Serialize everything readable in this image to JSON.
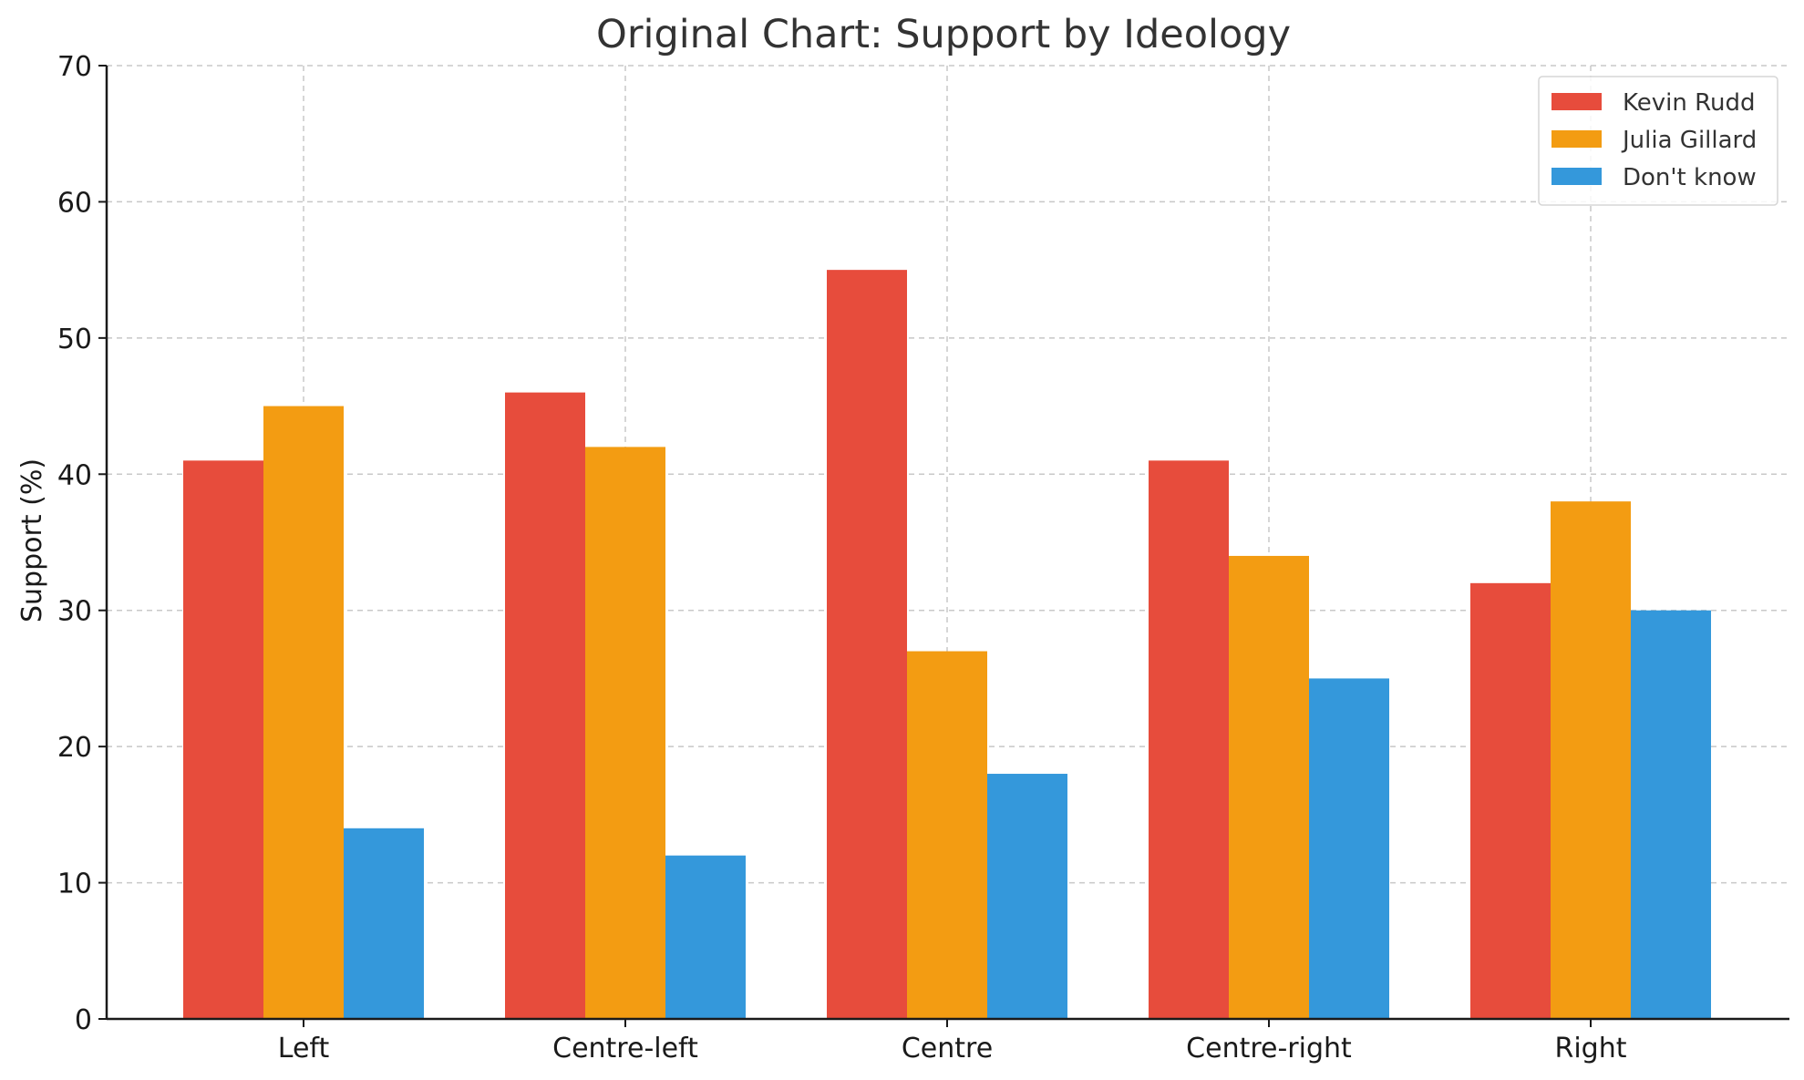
{
  "chart_data": {
    "type": "bar",
    "title": "Original Chart: Support by Ideology",
    "xlabel": "",
    "ylabel": "Support (%)",
    "categories": [
      "Left",
      "Centre-left",
      "Centre",
      "Centre-right",
      "Right"
    ],
    "series": [
      {
        "name": "Kevin Rudd",
        "color": "#e74c3c",
        "values": [
          41,
          46,
          55,
          41,
          32
        ]
      },
      {
        "name": "Julia Gillard",
        "color": "#f39c12",
        "values": [
          45,
          42,
          27,
          34,
          38
        ]
      },
      {
        "name": "Don't know",
        "color": "#3498db",
        "values": [
          14,
          12,
          18,
          25,
          30
        ]
      }
    ],
    "ylim": [
      0,
      70
    ],
    "yticks": [
      "0",
      "10",
      "20",
      "30",
      "40",
      "50",
      "60",
      "70"
    ],
    "grid": true,
    "legend_position": "top-right"
  }
}
